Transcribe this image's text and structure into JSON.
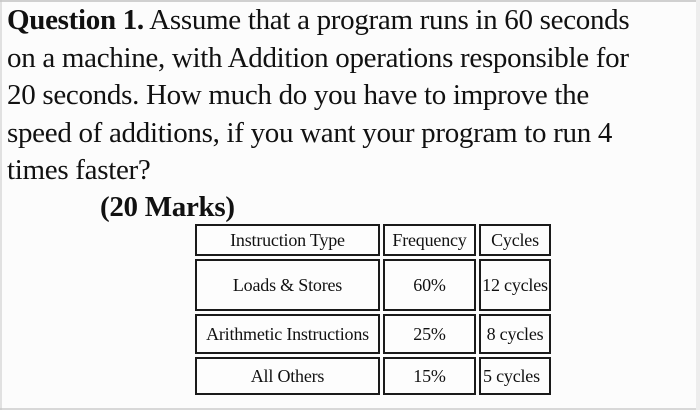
{
  "page": {
    "background": "#fcfcfc",
    "text_color": "#111111"
  },
  "question": {
    "prefix": "Question 1.",
    "line1_rest": " Assume that a program runs in 60 seconds",
    "line2": "on a machine, with Addition operations responsible for",
    "line3": "20 seconds. How much do you have to improve the",
    "line4": "speed of additions, if you want your program to run 4",
    "line5": "times faster?",
    "marks": "(20 Marks)"
  },
  "table": {
    "border_color": "#1a1a1a",
    "headers": [
      "Instruction Type",
      "Frequency",
      "Cycles"
    ],
    "rows": [
      [
        "Loads & Stores",
        "60%",
        "12 cycles"
      ],
      [
        "Arithmetic Instructions",
        "25%",
        "8 cycles"
      ],
      [
        "All Others",
        "15%",
        "5 cycles"
      ]
    ]
  }
}
